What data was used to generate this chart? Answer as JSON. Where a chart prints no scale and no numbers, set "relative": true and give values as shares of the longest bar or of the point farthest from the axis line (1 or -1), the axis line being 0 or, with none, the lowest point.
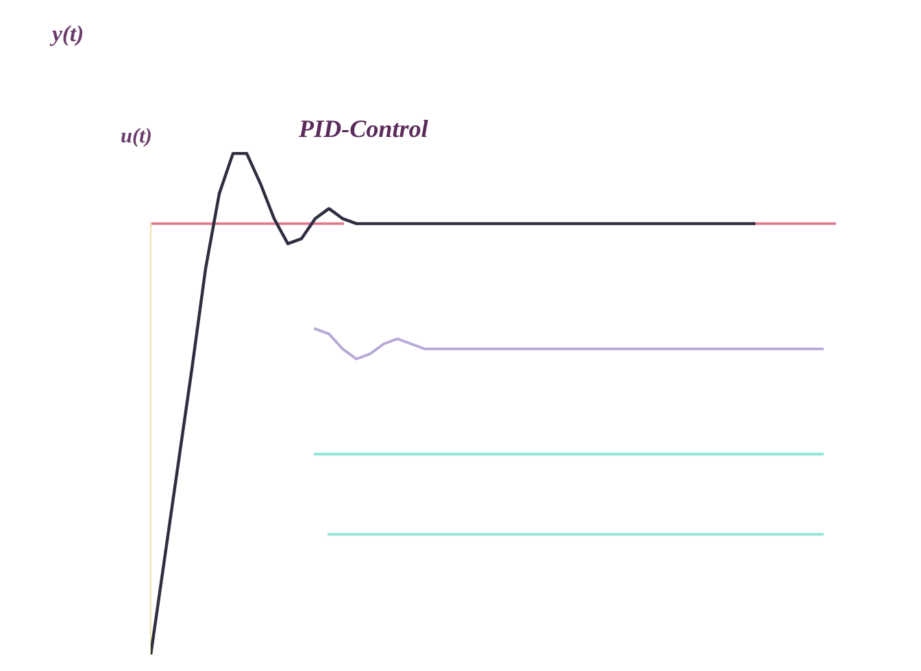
{
  "chart_data": {
    "type": "line",
    "relative": true,
    "tick_labels": false,
    "marker": "none",
    "line_style": "solid",
    "categories": [
      null,
      null,
      null,
      null,
      null,
      null,
      null,
      null,
      null,
      null,
      null,
      null,
      null,
      null,
      null,
      null,
      null,
      null,
      null,
      null,
      null,
      null,
      null,
      null,
      null,
      null,
      null,
      null,
      null,
      null,
      null,
      null,
      null,
      null,
      null,
      null,
      null,
      null,
      null,
      null,
      null,
      null,
      null,
      null,
      null,
      null,
      null,
      null,
      null,
      null,
      null
    ],
    "annotations": [
      "y(t)",
      "u(t)",
      "PID-Control"
    ],
    "series": [
      {
        "color": "#e07a8c",
        "values": [
          0.86,
          0.86,
          0.86,
          0.86,
          0.86,
          0.86,
          0.86,
          0.86,
          0.86,
          0.86,
          0.86,
          0.86,
          0.86,
          0.86,
          0.86,
          null,
          null,
          null,
          null,
          null,
          null,
          null,
          null,
          null,
          null,
          null,
          null,
          null,
          null,
          null,
          null,
          null,
          null,
          null,
          null,
          null,
          null,
          null,
          null,
          null,
          null,
          null,
          null,
          null,
          0.86,
          0.86,
          0.86,
          0.86,
          0.86,
          0.86,
          0.86
        ]
      },
      {
        "color": "#2e2e40",
        "values": [
          0,
          0.19,
          0.38,
          0.57,
          0.77,
          0.92,
          1.0,
          1.0,
          0.94,
          0.87,
          0.82,
          0.83,
          0.87,
          0.89,
          0.87,
          0.86,
          0.86,
          0.86,
          0.86,
          0.86,
          0.86,
          0.86,
          0.86,
          0.86,
          0.86,
          0.86,
          0.86,
          0.86,
          0.86,
          0.86,
          0.86,
          0.86,
          0.86,
          0.86,
          0.86,
          0.86,
          0.86,
          0.86,
          0.86,
          0.86,
          0.86,
          0.86,
          0.86,
          0.86,
          0.86,
          null,
          null,
          null,
          null,
          null,
          null
        ]
      },
      {
        "color": "#b8a8d8",
        "values": [
          null,
          null,
          null,
          null,
          null,
          null,
          null,
          null,
          null,
          null,
          null,
          null,
          0.65,
          0.64,
          0.61,
          0.59,
          0.6,
          0.62,
          0.63,
          0.62,
          0.61,
          0.61,
          0.61,
          0.61,
          0.61,
          0.61,
          0.61,
          0.61,
          0.61,
          0.61,
          0.61,
          0.61,
          0.61,
          0.61,
          0.61,
          0.61,
          0.61,
          0.61,
          0.61,
          0.61,
          0.61,
          0.61,
          0.61,
          0.61,
          0.61,
          0.61,
          0.61,
          0.61,
          0.61,
          0.61,
          null
        ]
      },
      {
        "color": "#8ee6d6",
        "values": [
          null,
          null,
          null,
          null,
          null,
          null,
          null,
          null,
          null,
          null,
          null,
          null,
          0.4,
          0.4,
          0.4,
          0.4,
          0.4,
          0.4,
          0.4,
          0.4,
          0.4,
          0.4,
          0.4,
          0.4,
          0.4,
          0.4,
          0.4,
          0.4,
          0.4,
          0.4,
          0.4,
          0.4,
          0.4,
          0.4,
          0.4,
          0.4,
          0.4,
          0.4,
          0.4,
          0.4,
          0.4,
          0.4,
          0.4,
          0.4,
          0.4,
          0.4,
          0.4,
          0.4,
          0.4,
          0.4,
          null
        ]
      },
      {
        "color": "#8ee6d6",
        "values": [
          null,
          null,
          null,
          null,
          null,
          null,
          null,
          null,
          null,
          null,
          null,
          null,
          null,
          0.24,
          0.24,
          0.24,
          0.24,
          0.24,
          0.24,
          0.24,
          0.24,
          0.24,
          0.24,
          0.24,
          0.24,
          0.24,
          0.24,
          0.24,
          0.24,
          0.24,
          0.24,
          0.24,
          0.24,
          0.24,
          0.24,
          0.24,
          0.24,
          0.24,
          0.24,
          0.24,
          0.24,
          0.24,
          0.24,
          0.24,
          0.24,
          0.24,
          0.24,
          0.24,
          0.24,
          0.24,
          null
        ]
      }
    ]
  }
}
